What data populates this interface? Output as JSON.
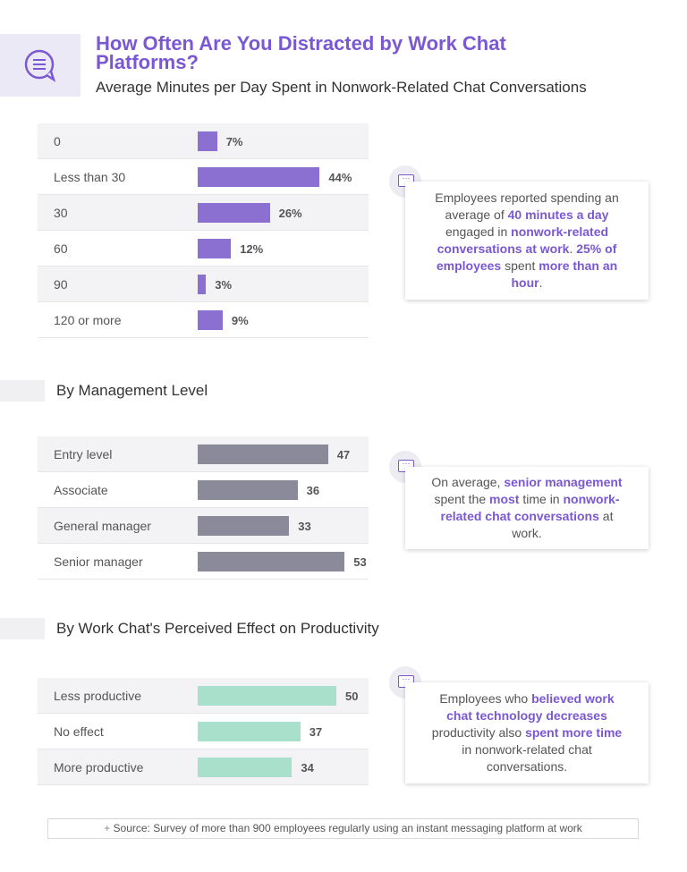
{
  "header": {
    "title": "How Often Are You Distracted by Work Chat Platforms?",
    "subtitle": "Average Minutes per Day Spent in Nonwork-Related Chat Conversations"
  },
  "chart_data": [
    {
      "type": "bar",
      "orientation": "horizontal",
      "color": "#8b70d1",
      "categories": [
        "0",
        "Less than 30",
        "30",
        "60",
        "90",
        "120 or more"
      ],
      "values": [
        7,
        44,
        26,
        12,
        3,
        9
      ],
      "value_labels": [
        "7%",
        "44%",
        "26%",
        "12%",
        "3%",
        "9%"
      ],
      "note": [
        {
          "text": "Employees reported spending an average of ",
          "bold": false
        },
        {
          "text": "40 minutes a day",
          "bold": true
        },
        {
          "text": " engaged in ",
          "bold": false
        },
        {
          "text": "nonwork-related conversations at work",
          "bold": true
        },
        {
          "text": ". ",
          "bold": false
        },
        {
          "text": "25% of employees",
          "bold": true
        },
        {
          "text": " spent ",
          "bold": false
        },
        {
          "text": "more than an hour",
          "bold": true
        },
        {
          "text": ".",
          "bold": false
        }
      ]
    },
    {
      "type": "bar",
      "orientation": "horizontal",
      "color": "#8b8a9a",
      "title": "By Management Level",
      "categories": [
        "Entry level",
        "Associate",
        "General manager",
        "Senior manager"
      ],
      "values": [
        47,
        36,
        33,
        53
      ],
      "note": [
        {
          "text": "On average, ",
          "bold": false
        },
        {
          "text": "senior management",
          "bold": true
        },
        {
          "text": " spent the ",
          "bold": false
        },
        {
          "text": "most",
          "bold": true
        },
        {
          "text": " time in ",
          "bold": false
        },
        {
          "text": "nonwork-related chat conversations",
          "bold": true
        },
        {
          "text": " at work.",
          "bold": false
        }
      ]
    },
    {
      "type": "bar",
      "orientation": "horizontal",
      "color": "#a9e0cb",
      "title": "By Work Chat's Perceived Effect on Productivity",
      "categories": [
        "Less productive",
        "No effect",
        "More productive"
      ],
      "values": [
        50,
        37,
        34
      ],
      "note": [
        {
          "text": "Employees who ",
          "bold": false
        },
        {
          "text": "believed work chat technology decreases",
          "bold": true
        },
        {
          "text": " productivity also ",
          "bold": false
        },
        {
          "text": "spent more time",
          "bold": true
        },
        {
          "text": " in nonwork-related chat conversations.",
          "bold": false
        }
      ]
    }
  ],
  "source": "Source: Survey of more than 900 employees regularly using an instant messaging platform at work"
}
